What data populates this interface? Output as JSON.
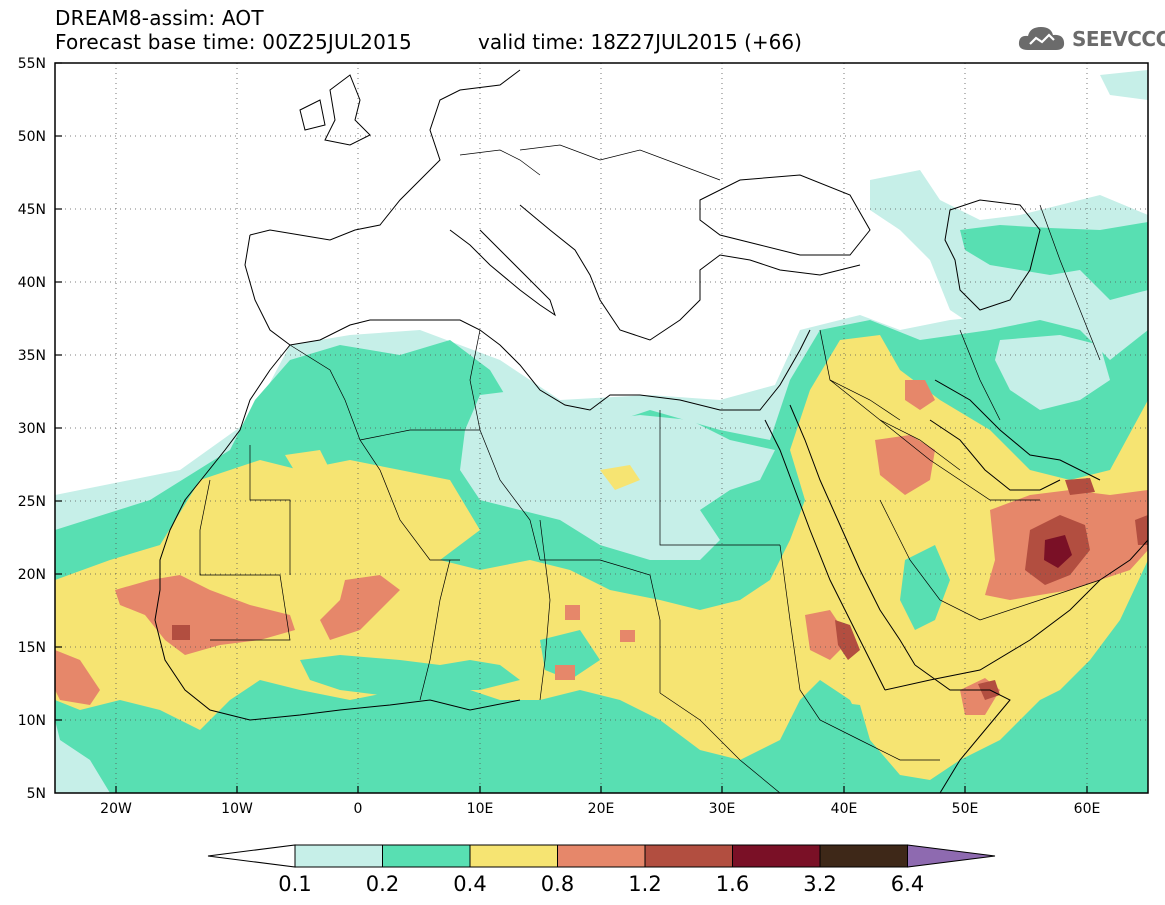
{
  "header": {
    "title": "DREAM8-assim: AOT",
    "base_time": "Forecast base time: 00Z25JUL2015",
    "valid_time": "valid time: 18Z27JUL2015 (+66)",
    "logo_text": "SEEVCCC",
    "logo_icon": "cloud-logo-icon"
  },
  "map": {
    "variable": "AOT",
    "lat_labels": [
      "55N",
      "50N",
      "45N",
      "40N",
      "35N",
      "30N",
      "25N",
      "20N",
      "15N",
      "10N",
      "5N"
    ],
    "lon_labels": [
      "20W",
      "10W",
      "0",
      "10E",
      "20E",
      "30E",
      "40E",
      "50E",
      "60E"
    ],
    "lon_range": [
      -25,
      65
    ],
    "lat_range": [
      5,
      55
    ],
    "grid": "dotted",
    "colors": {
      "c1": "#c6efe8",
      "c2": "#58dfb2",
      "c3": "#f6e472",
      "c4": "#e6876a",
      "c5": "#b24e40",
      "c6": "#7a1026",
      "c7": "#3e2818",
      "c8": "#8e6ab0"
    }
  },
  "colorbar": {
    "labels": [
      "0.1",
      "0.2",
      "0.4",
      "0.8",
      "1.2",
      "1.6",
      "3.2",
      "6.4"
    ],
    "colors": [
      "#c6efe8",
      "#58dfb2",
      "#f6e472",
      "#e6876a",
      "#b24e40",
      "#7a1026",
      "#3e2818"
    ],
    "under_color": "#ffffff",
    "over_color": "#8e6ab0"
  }
}
